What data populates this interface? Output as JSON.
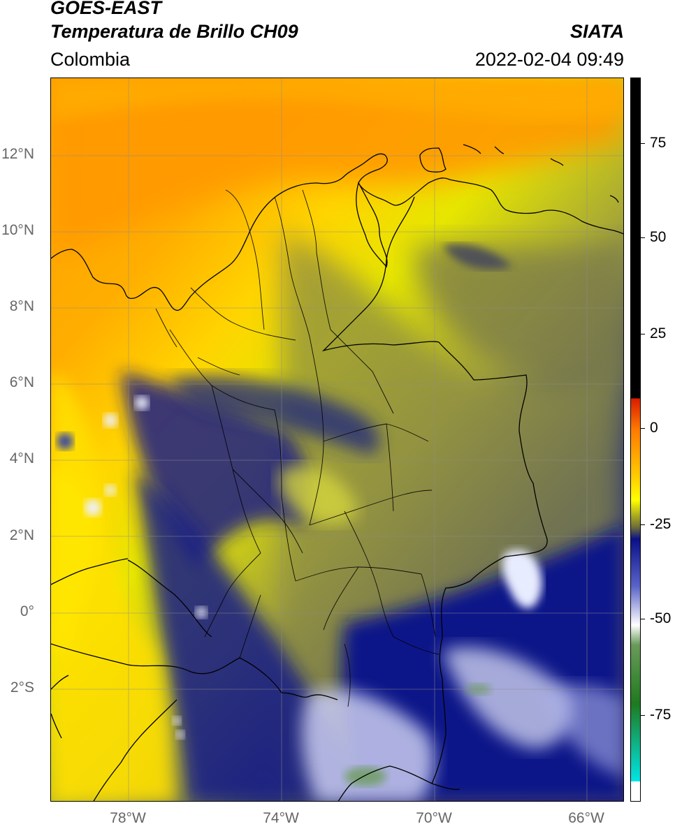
{
  "header": {
    "satellite": "GOES-EAST",
    "product": "Temperatura de Brillo CH09",
    "region": "Colombia",
    "org": "SIATA",
    "datetime": "2022-02-04 09:49"
  },
  "map": {
    "lat_labels": [
      "12°N",
      "10°N",
      "8°N",
      "6°N",
      "4°N",
      "2°N",
      "0°",
      "2°S"
    ],
    "lon_labels": [
      "78°W",
      "74°W",
      "70°W",
      "66°W"
    ],
    "features": [
      "brightness-temperature-field",
      "coastlines",
      "country-borders",
      "department-boundaries",
      "graticule"
    ]
  },
  "colorbar": {
    "ticks": [
      "75",
      "50",
      "25",
      "0",
      "-25",
      "-50",
      "-75"
    ],
    "range": [
      -95,
      90
    ],
    "stops": [
      {
        "value": 90,
        "color": "#000000"
      },
      {
        "value": 8,
        "color": "#000000"
      },
      {
        "value": 8,
        "color": "#d91c00"
      },
      {
        "value": 0,
        "color": "#ff7b00"
      },
      {
        "value": -12,
        "color": "#ffcc00"
      },
      {
        "value": -18,
        "color": "#ffff00"
      },
      {
        "value": -25,
        "color": "#6b6b3a"
      },
      {
        "value": -28,
        "color": "#0b1086"
      },
      {
        "value": -40,
        "color": "#5a63c9"
      },
      {
        "value": -50,
        "color": "#ffffff"
      },
      {
        "value": -55,
        "color": "#6a9b5a"
      },
      {
        "value": -70,
        "color": "#1f7a1f"
      },
      {
        "value": -90,
        "color": "#00e6e6"
      },
      {
        "value": -90,
        "color": "#ffffff"
      },
      {
        "value": -95,
        "color": "#ffffff"
      }
    ]
  }
}
